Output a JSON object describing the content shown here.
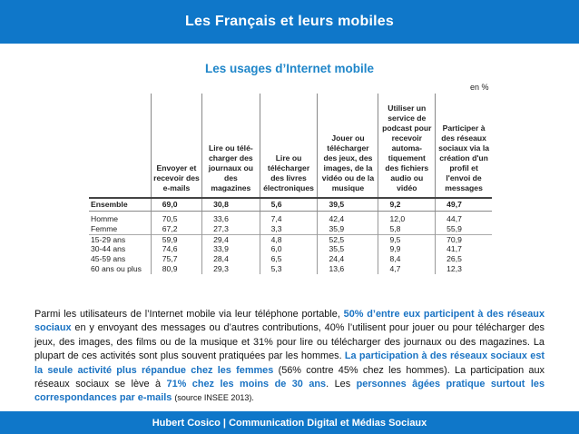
{
  "header": {
    "title": "Les Français et leurs mobiles"
  },
  "subtitle": "Les usages d’Internet mobile",
  "table": {
    "unit": "en %",
    "columns": [
      "",
      "Envoyer et recevoir des e-mails",
      "Lire ou télé-charger des journaux ou des magazines",
      "Lire ou télécharger des livres électroniques",
      "Jouer ou télécharger des jeux, des images, de la vidéo ou de la musique",
      "Utiliser un service de podcast pour recevoir automa-tiquement des fichiers audio ou vidéo",
      "Participer à des réseaux sociaux via la création d'un profil et l'envoi de messages"
    ],
    "rows": [
      {
        "label": "Ensemble",
        "values": [
          "69,0",
          "30,8",
          "5,6",
          "39,5",
          "9,2",
          "49,7"
        ]
      },
      {
        "label": "Homme",
        "values": [
          "70,5",
          "33,6",
          "7,4",
          "42,4",
          "12,0",
          "44,7"
        ]
      },
      {
        "label": "Femme",
        "values": [
          "67,2",
          "27,3",
          "3,3",
          "35,9",
          "5,8",
          "55,9"
        ]
      },
      {
        "label": "15-29 ans",
        "values": [
          "59,9",
          "29,4",
          "4,8",
          "52,5",
          "9,5",
          "70,9"
        ]
      },
      {
        "label": "30-44 ans",
        "values": [
          "74,6",
          "33,9",
          "6,0",
          "35,5",
          "9,9",
          "41,7"
        ]
      },
      {
        "label": "45-59 ans",
        "values": [
          "75,7",
          "28,4",
          "6,5",
          "24,4",
          "8,4",
          "26,5"
        ]
      },
      {
        "label": "60 ans ou plus",
        "values": [
          "80,9",
          "29,3",
          "5,3",
          "13,6",
          "4,7",
          "12,3"
        ]
      }
    ]
  },
  "paragraph": {
    "t1": "Parmi les utilisateurs de l’Internet mobile via leur téléphone portable, ",
    "h1": "50% d’entre eux participent à des réseaux sociaux",
    "t2": " en y envoyant des messages ou d’autres contributions, 40% l’utilisent pour jouer ou pour télécharger des jeux, des images, des films ou de la musique et 31% pour lire ou télécharger des journaux ou des magazines. La plupart de ces activités sont plus souvent pratiquées par les hommes. ",
    "h2": "La participation à des réseaux sociaux est la seule activité plus répandue chez les femmes",
    "t3": " (56% contre 45% chez les hommes). La participation aux réseaux sociaux se lève à ",
    "h3": "71% chez les moins de 30 ans",
    "t4": ". Les ",
    "h4": "personnes âgées pratique surtout les correspondances par e-mails",
    "t5": " ",
    "source": "(source INSEE 2013)."
  },
  "footer": {
    "text": "Hubert Cosico | Communication Digital et Médias Sociaux"
  }
}
